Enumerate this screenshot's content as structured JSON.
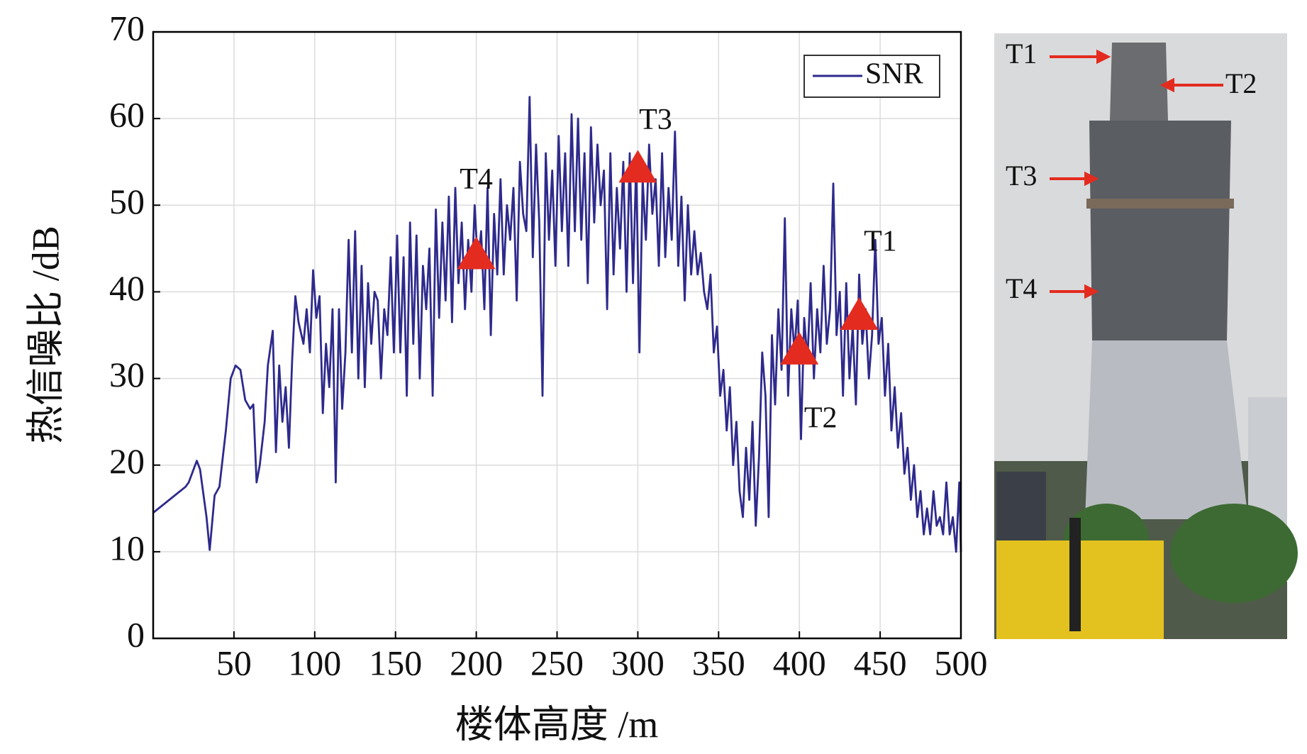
{
  "chart_data": {
    "type": "line",
    "xlabel": "楼体高度 /m",
    "ylabel": "热信噪比 /dB",
    "xlim": [
      0,
      500
    ],
    "xticks": [
      50,
      100,
      150,
      200,
      250,
      300,
      350,
      400,
      450,
      500
    ],
    "ylim": [
      0,
      70
    ],
    "yticks": [
      0,
      10,
      20,
      30,
      40,
      50,
      60,
      70
    ],
    "grid": true,
    "legend": "upper right",
    "x": [
      0,
      10,
      20,
      22,
      27,
      29,
      33,
      35,
      38,
      41,
      45,
      48,
      51,
      54,
      57,
      60,
      62,
      64,
      66,
      69,
      71,
      74,
      76,
      78,
      80,
      82,
      84,
      86,
      88,
      90,
      93,
      95,
      97,
      99,
      101,
      103,
      105,
      107,
      109,
      111,
      113,
      115,
      117,
      119,
      121,
      123,
      125,
      127,
      129,
      131,
      133,
      135,
      137,
      139,
      141,
      143,
      145,
      147,
      149,
      151,
      153,
      155,
      157,
      159,
      161,
      163,
      165,
      167,
      169,
      171,
      173,
      175,
      177,
      179,
      181,
      183,
      185,
      187,
      189,
      191,
      193,
      195,
      197,
      199,
      201,
      203,
      205,
      207,
      209,
      211,
      213,
      215,
      217,
      219,
      221,
      223,
      225,
      227,
      229,
      231,
      233,
      235,
      237,
      239,
      241,
      243,
      245,
      247,
      249,
      251,
      253,
      255,
      257,
      259,
      261,
      263,
      265,
      267,
      269,
      271,
      273,
      275,
      277,
      279,
      281,
      283,
      285,
      287,
      289,
      291,
      293,
      295,
      297,
      299,
      301,
      303,
      305,
      307,
      309,
      311,
      313,
      315,
      317,
      319,
      321,
      323,
      325,
      327,
      329,
      331,
      333,
      335,
      337,
      339,
      341,
      343,
      345,
      347,
      349,
      351,
      353,
      355,
      357,
      359,
      361,
      363,
      365,
      367,
      369,
      371,
      373,
      375,
      377,
      379,
      381,
      383,
      385,
      387,
      389,
      391,
      393,
      395,
      397,
      399,
      401,
      403,
      405,
      407,
      409,
      411,
      413,
      415,
      417,
      419,
      421,
      423,
      425,
      427,
      429,
      431,
      433,
      435,
      437,
      439,
      441,
      443,
      445,
      447,
      449,
      451,
      453,
      455,
      457,
      459,
      461,
      463,
      465,
      467,
      469,
      471,
      473,
      475,
      477,
      479,
      481,
      483,
      485,
      487,
      489,
      491,
      493,
      495,
      497,
      499,
      500
    ],
    "series": [
      {
        "name": "SNR",
        "color": "#2e2a8c",
        "values": [
          14.5,
          16,
          17.5,
          18,
          20.5,
          19.5,
          14,
          10.2,
          16.5,
          17.5,
          24,
          30,
          31.5,
          31,
          27.5,
          26.5,
          27,
          18,
          20,
          25,
          31.5,
          35.5,
          21.5,
          31.5,
          25,
          29,
          22,
          32,
          39.5,
          36.5,
          34,
          38,
          33,
          42.5,
          37,
          39.5,
          26,
          34,
          29,
          38,
          18,
          38,
          26.5,
          33,
          46,
          33,
          47,
          30,
          43,
          29,
          41,
          34,
          40,
          39,
          30,
          38,
          35,
          44,
          33,
          46.5,
          33,
          44,
          28,
          48,
          34,
          46.5,
          30,
          43,
          38,
          45,
          28,
          49.5,
          37,
          48,
          39,
          51,
          36.5,
          52,
          41,
          48,
          38,
          46,
          40,
          50,
          43,
          47,
          38,
          52,
          35,
          49,
          42,
          53,
          42,
          50,
          46,
          52,
          39,
          55,
          49,
          47,
          62.5,
          44,
          57,
          48,
          28,
          56,
          46,
          54,
          43,
          58,
          47,
          56,
          43,
          60.5,
          47,
          60,
          46,
          56,
          41,
          59,
          48,
          57,
          50,
          54,
          38,
          56,
          42,
          52,
          45,
          55,
          40,
          56,
          41,
          55,
          33,
          53,
          46,
          57,
          49,
          53,
          43,
          56,
          44,
          52,
          46,
          58.5,
          43,
          51,
          39,
          50,
          42,
          47,
          42,
          44.5,
          40,
          38,
          42,
          33,
          36,
          28,
          31,
          24,
          29,
          20,
          25,
          17,
          14,
          22,
          16,
          25,
          13,
          21,
          33,
          28,
          14,
          35,
          27,
          38,
          31,
          48.5,
          28,
          38,
          33,
          39,
          23,
          37,
          32,
          41,
          30,
          38,
          33,
          43,
          34,
          38,
          52.5,
          35,
          40,
          28,
          41,
          30,
          36,
          27,
          42,
          34,
          38,
          30,
          35,
          46,
          34,
          37,
          28,
          34,
          24,
          29,
          22,
          26,
          19,
          22,
          16,
          20,
          14,
          17,
          12,
          15,
          12,
          17,
          13,
          14,
          12,
          18,
          12,
          14,
          10,
          18,
          10
        ]
      }
    ],
    "markers": {
      "color": "#e32b1f",
      "x": [
        200,
        300,
        400,
        437
      ],
      "y": [
        44.5,
        54.5,
        33.5,
        37.5
      ],
      "labels": [
        "T4",
        "T3",
        "T2",
        "T1"
      ]
    }
  },
  "photo": {
    "labels": [
      "T1",
      "T2",
      "T3",
      "T4"
    ]
  }
}
